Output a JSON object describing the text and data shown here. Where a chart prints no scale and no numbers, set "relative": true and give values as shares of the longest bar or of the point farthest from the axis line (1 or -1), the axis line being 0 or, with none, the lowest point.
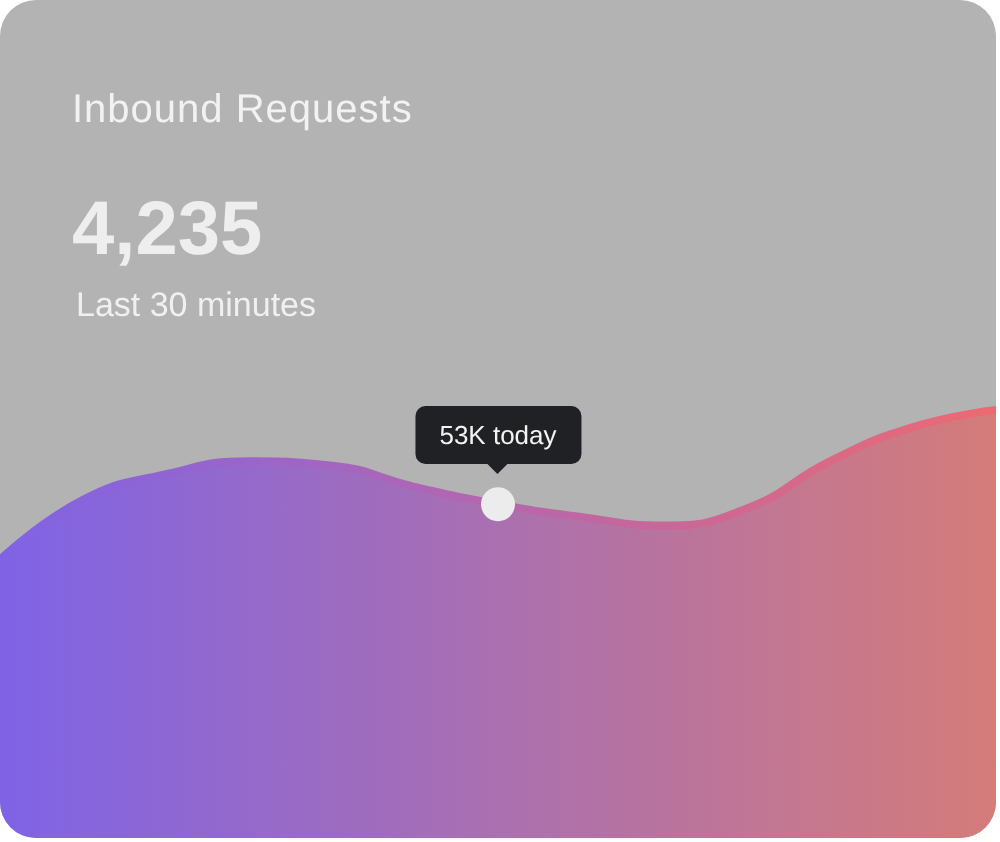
{
  "chart_data": {
    "type": "area",
    "title": "Inbound Requests",
    "subtitle": "Last 30 minutes",
    "relative": true,
    "categories": [
      null,
      null,
      null,
      null,
      null,
      null,
      null,
      null,
      null,
      null,
      null,
      null,
      null
    ],
    "series": [
      {
        "color": "#7f63e6",
        "values": [
          0.65,
          0.79,
          0.85,
          0.88,
          0.87,
          0.82,
          0.78,
          0.75,
          0.73,
          0.77,
          0.88,
          0.96,
          1
        ]
      }
    ],
    "annotations": [
      "4,235",
      {
        "text": "53K today",
        "y": 0.78
      }
    ]
  }
}
